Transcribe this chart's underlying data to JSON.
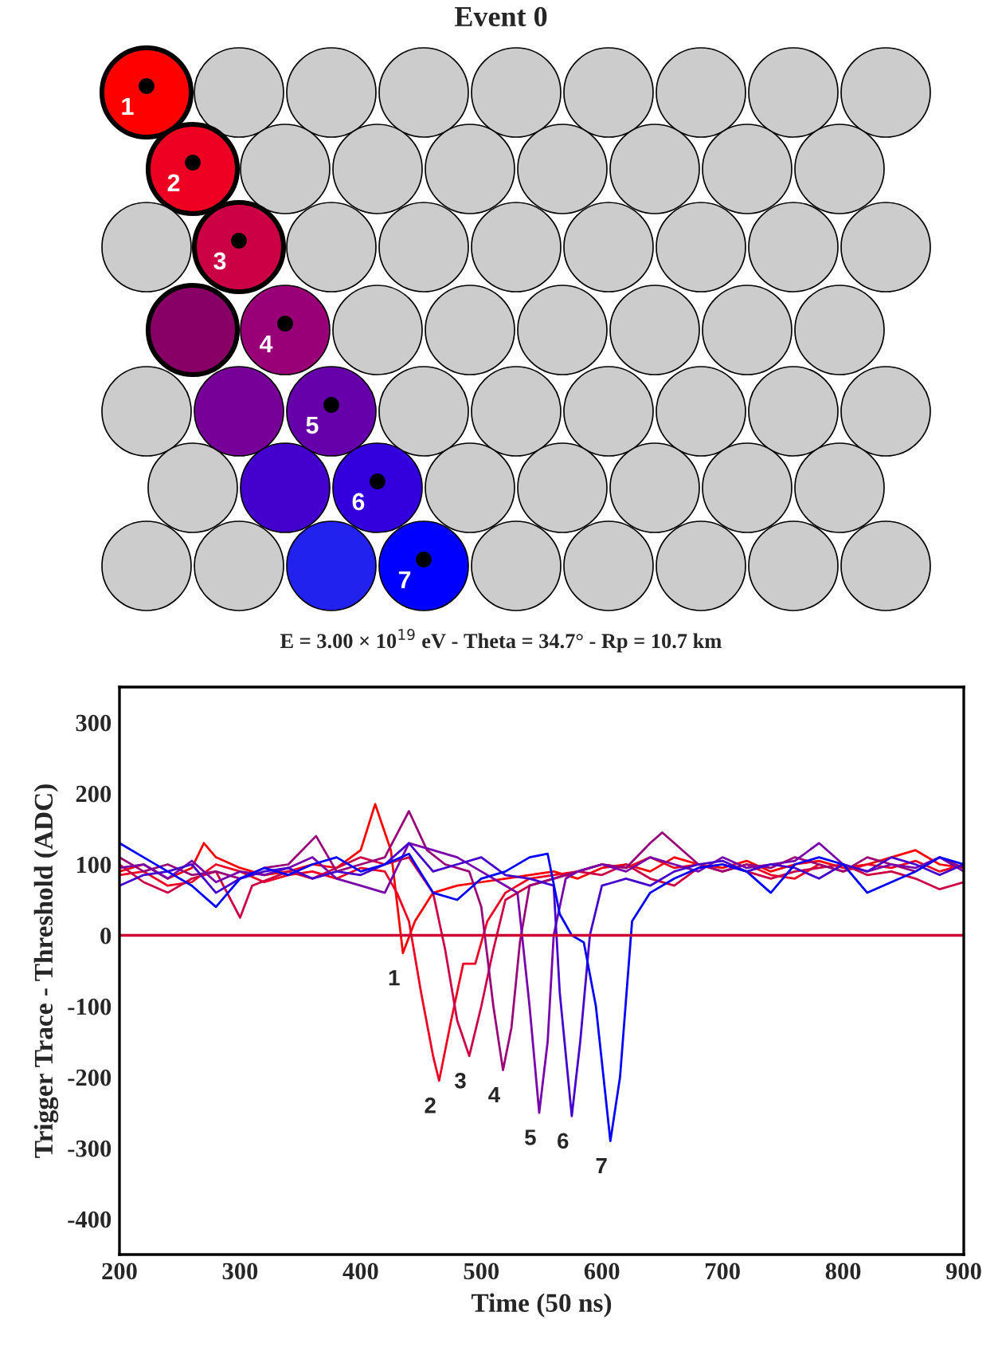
{
  "chart_data": [
    {
      "type": "other",
      "title": "Event 0",
      "subtitle": "E = 3.00 × 10$^{19}$ eV - Theta = 34.7° - Rp = 10.7 km",
      "annotations": [
        "1",
        "2",
        "3",
        "4",
        "5",
        "6",
        "7"
      ]
    },
    {
      "type": "line",
      "xlabel": "Time (50 ns)",
      "ylabel": "Trigger Trace - Threshold (ADC)",
      "xlim": [
        200,
        900
      ],
      "ylim": [
        -450,
        350
      ],
      "xticks": [
        200,
        300,
        400,
        500,
        600,
        700,
        800,
        900
      ],
      "yticks": [
        -400,
        -300,
        -200,
        -100,
        0,
        100,
        200,
        300
      ],
      "grid": false,
      "legend": false,
      "marker": "none",
      "line_style": "solid",
      "ref_lines": [
        {
          "axis": "y",
          "value": 0,
          "color": "#cc0033"
        }
      ],
      "series": [
        {
          "color": "#ff0000",
          "x": [
            200,
            220,
            240,
            260,
            270,
            280,
            300,
            320,
            340,
            360,
            380,
            400,
            412,
            425,
            435,
            445,
            460,
            480,
            500,
            520,
            540,
            560,
            580,
            600,
            620,
            640,
            660,
            680,
            700,
            720,
            740,
            760,
            780,
            800,
            820,
            840,
            860,
            880,
            900
          ],
          "values": [
            90,
            100,
            80,
            95,
            130,
            110,
            95,
            85,
            90,
            100,
            95,
            120,
            185,
            120,
            -25,
            20,
            60,
            70,
            75,
            80,
            85,
            90,
            80,
            95,
            100,
            90,
            110,
            100,
            95,
            105,
            90,
            100,
            105,
            95,
            100,
            110,
            120,
            100,
            95
          ]
        },
        {
          "color": "#ee0022",
          "x": [
            200,
            220,
            240,
            260,
            280,
            300,
            320,
            340,
            360,
            380,
            400,
            420,
            430,
            440,
            450,
            460,
            465,
            475,
            485,
            495,
            505,
            520,
            540,
            560,
            580,
            600,
            620,
            640,
            660,
            680,
            700,
            720,
            740,
            760,
            780,
            800,
            820,
            840,
            860,
            880,
            900
          ],
          "values": [
            85,
            90,
            70,
            75,
            100,
            90,
            75,
            85,
            90,
            80,
            95,
            90,
            60,
            20,
            -80,
            -170,
            -205,
            -120,
            -40,
            -40,
            20,
            60,
            80,
            85,
            90,
            100,
            95,
            110,
            95,
            100,
            90,
            100,
            85,
            80,
            100,
            90,
            100,
            95,
            105,
            90,
            100
          ]
        },
        {
          "color": "#cc0044",
          "x": [
            200,
            220,
            240,
            260,
            280,
            300,
            310,
            340,
            360,
            380,
            400,
            420,
            440,
            460,
            470,
            480,
            490,
            500,
            510,
            520,
            540,
            560,
            580,
            600,
            620,
            640,
            660,
            680,
            700,
            720,
            740,
            760,
            780,
            800,
            820,
            840,
            860,
            880,
            900
          ],
          "values": [
            100,
            75,
            60,
            80,
            90,
            25,
            70,
            90,
            80,
            95,
            110,
            100,
            110,
            60,
            -20,
            -120,
            -170,
            -100,
            -20,
            50,
            70,
            80,
            90,
            85,
            100,
            80,
            70,
            95,
            100,
            90,
            80,
            90,
            95,
            100,
            85,
            90,
            80,
            65,
            75
          ]
        },
        {
          "color": "#990077",
          "x": [
            200,
            220,
            240,
            260,
            280,
            300,
            320,
            340,
            363,
            380,
            400,
            420,
            440,
            455,
            470,
            490,
            500,
            510,
            518,
            525,
            532,
            540,
            560,
            580,
            600,
            620,
            640,
            650,
            660,
            680,
            700,
            720,
            740,
            760,
            780,
            800,
            820,
            840,
            860,
            880,
            900
          ],
          "values": [
            110,
            90,
            100,
            85,
            90,
            80,
            95,
            100,
            140,
            90,
            100,
            110,
            175,
            120,
            100,
            90,
            40,
            -100,
            -190,
            -130,
            -10,
            70,
            80,
            90,
            100,
            95,
            130,
            145,
            130,
            100,
            90,
            100,
            95,
            110,
            100,
            90,
            110,
            100,
            90,
            110,
            95
          ]
        },
        {
          "color": "#7700aa",
          "x": [
            200,
            220,
            240,
            260,
            280,
            300,
            320,
            340,
            360,
            380,
            400,
            420,
            440,
            460,
            480,
            500,
            520,
            530,
            540,
            548,
            555,
            560,
            570,
            580,
            600,
            620,
            640,
            660,
            680,
            700,
            720,
            740,
            760,
            780,
            800,
            820,
            840,
            860,
            880,
            900
          ],
          "values": [
            95,
            100,
            80,
            105,
            75,
            90,
            85,
            95,
            110,
            80,
            70,
            60,
            130,
            120,
            110,
            90,
            70,
            60,
            -100,
            -250,
            -150,
            0,
            80,
            90,
            100,
            90,
            110,
            100,
            90,
            110,
            95,
            100,
            105,
            130,
            100,
            90,
            100,
            95,
            110,
            90
          ]
        },
        {
          "color": "#4400cc",
          "x": [
            200,
            220,
            240,
            260,
            280,
            300,
            320,
            340,
            360,
            380,
            400,
            420,
            440,
            460,
            480,
            500,
            520,
            540,
            560,
            565,
            575,
            582,
            590,
            600,
            620,
            640,
            660,
            680,
            700,
            720,
            740,
            760,
            780,
            800,
            820,
            840,
            860,
            880,
            900
          ],
          "values": [
            70,
            85,
            90,
            100,
            60,
            80,
            90,
            95,
            80,
            90,
            85,
            100,
            130,
            90,
            100,
            110,
            85,
            80,
            70,
            -80,
            -255,
            -150,
            0,
            70,
            80,
            70,
            90,
            100,
            105,
            90,
            100,
            95,
            80,
            100,
            90,
            110,
            100,
            85,
            100
          ]
        },
        {
          "color": "#0000ff",
          "x": [
            200,
            220,
            240,
            260,
            280,
            300,
            320,
            340,
            360,
            380,
            400,
            420,
            440,
            460,
            480,
            500,
            520,
            540,
            555,
            565,
            575,
            585,
            595,
            607,
            615,
            625,
            640,
            660,
            680,
            700,
            720,
            740,
            760,
            780,
            800,
            820,
            840,
            860,
            880,
            900
          ],
          "values": [
            130,
            110,
            90,
            70,
            40,
            80,
            95,
            85,
            100,
            110,
            90,
            100,
            115,
            60,
            50,
            80,
            90,
            110,
            115,
            30,
            0,
            -10,
            -100,
            -290,
            -200,
            20,
            60,
            80,
            95,
            100,
            90,
            60,
            100,
            110,
            100,
            60,
            75,
            90,
            110,
            100
          ]
        }
      ],
      "annotations": [
        {
          "text": "1",
          "x": 435,
          "y": -25
        },
        {
          "text": "2",
          "x": 465,
          "y": -205
        },
        {
          "text": "3",
          "x": 490,
          "y": -170
        },
        {
          "text": "4",
          "x": 518,
          "y": -190
        },
        {
          "text": "5",
          "x": 548,
          "y": -250
        },
        {
          "text": "6",
          "x": 575,
          "y": -255
        },
        {
          "text": "7",
          "x": 607,
          "y": -290
        }
      ]
    }
  ]
}
